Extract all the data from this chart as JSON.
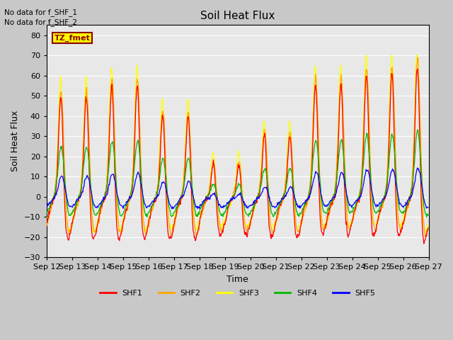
{
  "title": "Soil Heat Flux",
  "ylabel": "Soil Heat Flux",
  "xlabel": "Time",
  "ylim": [
    -30,
    85
  ],
  "annotations": [
    "No data for f_SHF_1",
    "No data for f_SHF_2"
  ],
  "legend_box_label": "TZ_fmet",
  "legend_box_color": "#ffff00",
  "legend_box_border": "#8B0000",
  "legend_box_text_color": "#8B0000",
  "figure_bg": "#c8c8c8",
  "plot_bg": "#e8e8e8",
  "colors": {
    "SHF1": "#ff0000",
    "SHF2": "#ffa500",
    "SHF3": "#ffff00",
    "SHF4": "#00bb00",
    "SHF5": "#0000ff"
  },
  "x_tick_labels": [
    "Sep 12",
    "Sep 13",
    "Sep 14",
    "Sep 15",
    "Sep 16",
    "Sep 17",
    "Sep 18",
    "Sep 19",
    "Sep 20",
    "Sep 21",
    "Sep 22",
    "Sep 23",
    "Sep 24",
    "Sep 25",
    "Sep 26",
    "Sep 27"
  ],
  "num_days": 15,
  "pts_per_day": 48
}
